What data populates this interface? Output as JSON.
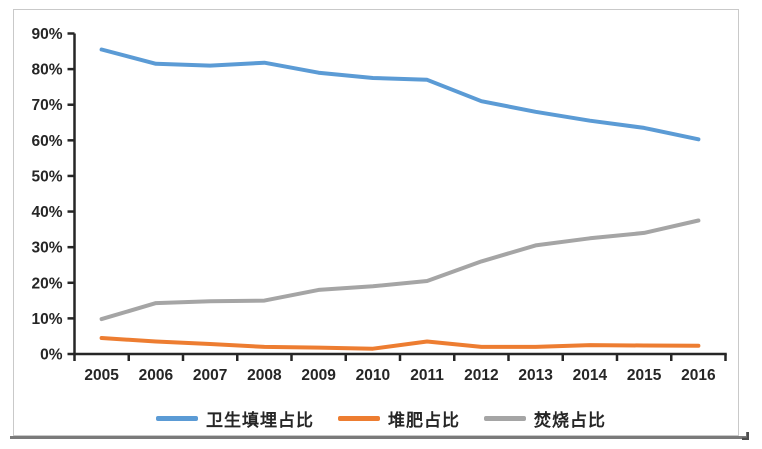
{
  "chart_data": {
    "type": "line",
    "title": "",
    "categories": [
      "2005",
      "2006",
      "2007",
      "2008",
      "2009",
      "2010",
      "2011",
      "2012",
      "2013",
      "2014",
      "2015",
      "2016"
    ],
    "series": [
      {
        "name": "卫生填埋占比",
        "color": "#5B9BD5",
        "values": [
          85.5,
          81.5,
          81.0,
          81.8,
          79.0,
          77.5,
          77.0,
          71.0,
          68.0,
          65.5,
          63.5,
          60.3
        ]
      },
      {
        "name": "堆肥占比",
        "color": "#ED7D31",
        "values": [
          4.5,
          3.5,
          2.8,
          2.0,
          1.8,
          1.5,
          3.5,
          2.0,
          2.0,
          2.5,
          2.4,
          2.3
        ]
      },
      {
        "name": "焚烧占比",
        "color": "#A5A5A5",
        "values": [
          9.8,
          14.3,
          14.8,
          15.0,
          18.0,
          19.0,
          20.5,
          26.0,
          30.5,
          32.5,
          34.0,
          37.5
        ]
      }
    ],
    "xlabel": "",
    "ylabel": "",
    "ylim": [
      0,
      90
    ],
    "ytick_step": 10,
    "ytick_labels": [
      "0%",
      "10%",
      "20%",
      "30%",
      "40%",
      "50%",
      "60%",
      "70%",
      "80%",
      "90%"
    ],
    "grid": false,
    "legend_position": "bottom",
    "axis_color": "#262626",
    "label_color": "#262626"
  }
}
